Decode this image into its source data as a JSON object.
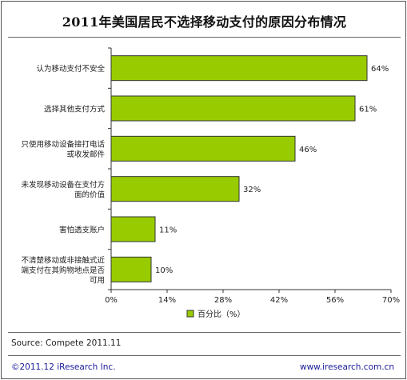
{
  "title": "2011年美国居民不选择移动支付的原因分布情况",
  "source": "Source: Compete  2011.11",
  "copyright": "©2011.12 iResearch Inc.",
  "website": "www.iresearch.com.cn",
  "chart_data": {
    "type": "bar",
    "orientation": "horizontal",
    "title": "2011年美国居民不选择移动支付的原因分布情况",
    "categories": [
      [
        "认为移动支付不安全"
      ],
      [
        "选择其他支付方式"
      ],
      [
        "只使用移动设备接打电话",
        "或收发邮件"
      ],
      [
        "未发现移动设备在支付方",
        "面的价值"
      ],
      [
        "害怕透支账户"
      ],
      [
        "不清楚移动或非接触式近",
        "端支付在其购物地点是否",
        "可用"
      ]
    ],
    "series": [
      {
        "name": "百分比（%）",
        "values": [
          64,
          61,
          46,
          32,
          11,
          10
        ],
        "labels": [
          "64%",
          "61%",
          "46%",
          "32%",
          "11%",
          "10%"
        ]
      }
    ],
    "xlim": [
      0,
      70
    ],
    "xticks": [
      "0%",
      "14%",
      "28%",
      "42%",
      "56%",
      "70%"
    ],
    "grid": false,
    "legend": "bottom",
    "colors": {
      "bar": "#99CC00",
      "bar_edge": "#333333"
    }
  }
}
